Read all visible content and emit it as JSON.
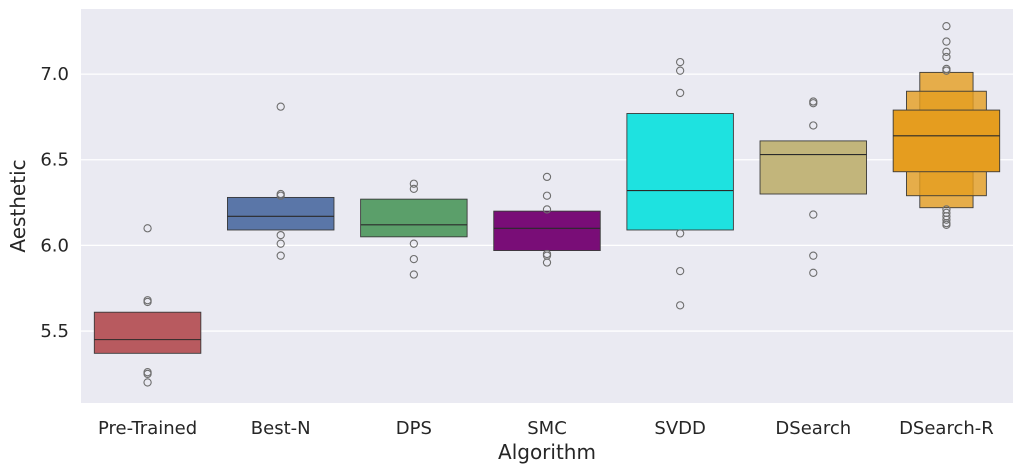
{
  "chart_data": {
    "type": "boxen",
    "title": "",
    "xlabel": "Algorithm",
    "ylabel": "Aesthetic",
    "ylim": [
      5.08,
      7.38
    ],
    "yticks": [
      "5.5",
      "6.0",
      "6.5",
      "7.0"
    ],
    "grid": true,
    "background_color": "#eaeaf2",
    "categories": [
      {
        "name": "Pre-Trained",
        "color": "#b85a5f",
        "boxes": [
          {
            "low": 5.37,
            "high": 5.61
          }
        ],
        "median": 5.45,
        "outliers": [
          6.1,
          5.68,
          5.67,
          5.26,
          5.25,
          5.2
        ]
      },
      {
        "name": "Best-N",
        "color": "#5a76a8",
        "boxes": [
          {
            "low": 6.09,
            "high": 6.28
          }
        ],
        "median": 6.17,
        "outliers": [
          6.81,
          6.3,
          6.29,
          6.06,
          6.01,
          5.94
        ]
      },
      {
        "name": "DPS",
        "color": "#5b9f6a",
        "boxes": [
          {
            "low": 6.05,
            "high": 6.27
          }
        ],
        "median": 6.12,
        "outliers": [
          6.36,
          6.33,
          6.01,
          5.92,
          5.83
        ]
      },
      {
        "name": "SMC",
        "color": "#790d77",
        "boxes": [
          {
            "low": 5.97,
            "high": 6.2
          }
        ],
        "median": 6.1,
        "outliers": [
          6.4,
          6.29,
          6.21,
          5.95,
          5.94,
          5.9
        ]
      },
      {
        "name": "SVDD",
        "color": "#1ee2e0",
        "boxes": [
          {
            "low": 6.09,
            "high": 6.77
          }
        ],
        "median": 6.32,
        "outliers": [
          7.07,
          7.02,
          6.89,
          6.07,
          5.85,
          5.65
        ]
      },
      {
        "name": "DSearch",
        "color": "#c2b57b",
        "boxes": [
          {
            "low": 6.3,
            "high": 6.61
          }
        ],
        "median": 6.53,
        "outliers": [
          6.84,
          6.83,
          6.7,
          6.18,
          5.94,
          5.84
        ]
      },
      {
        "name": "DSearch-R",
        "color": "#e59d1f",
        "boxes": [
          {
            "low": 6.22,
            "high": 7.01
          },
          {
            "low": 6.29,
            "high": 6.9
          },
          {
            "low": 6.43,
            "high": 6.79
          }
        ],
        "median": 6.64,
        "outliers": [
          7.28,
          7.19,
          7.13,
          7.1,
          7.03,
          7.02,
          6.21,
          6.19,
          6.17,
          6.15,
          6.13,
          6.12
        ]
      }
    ]
  }
}
